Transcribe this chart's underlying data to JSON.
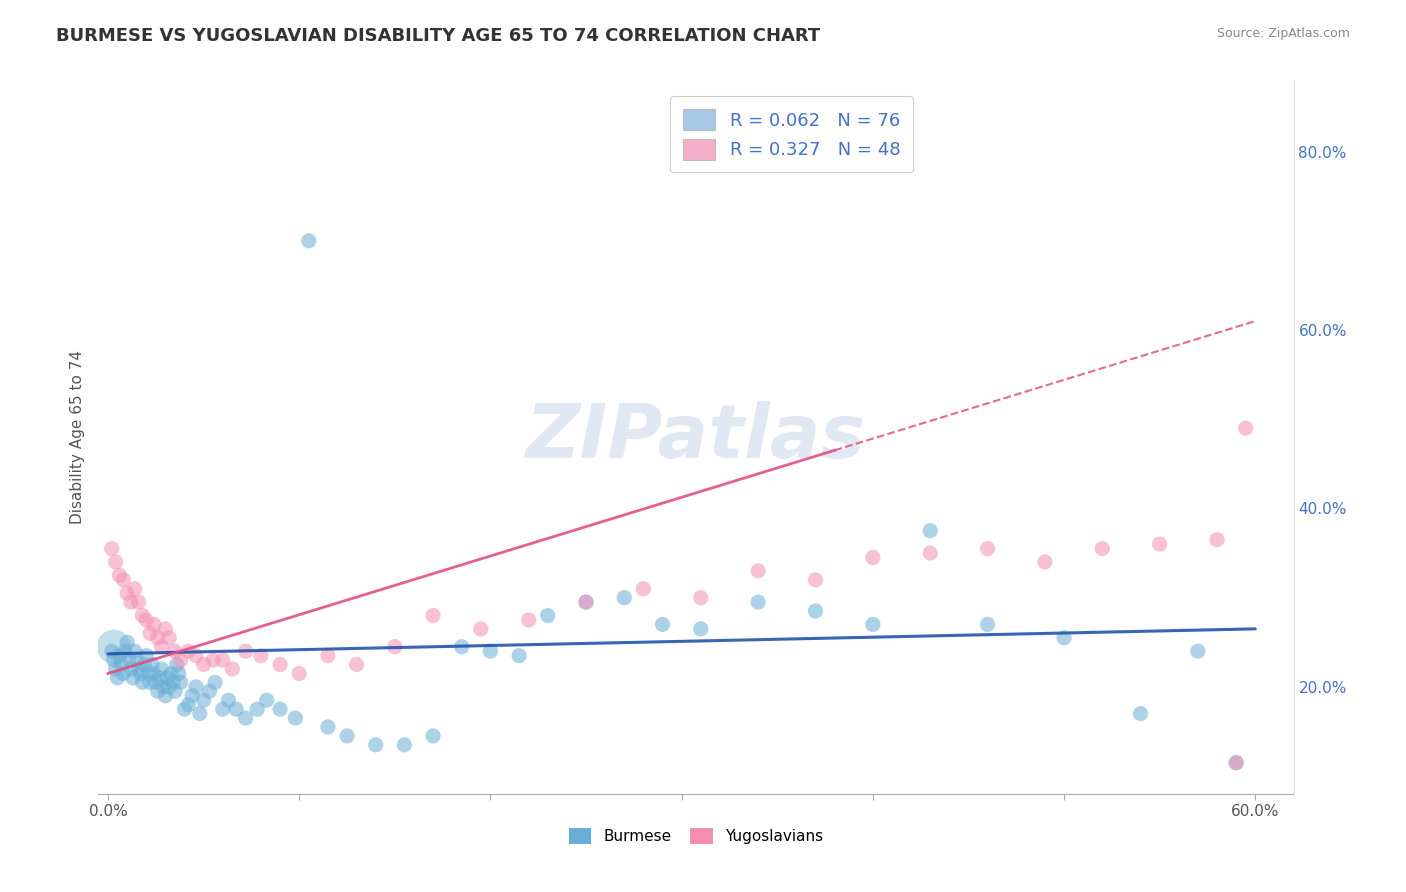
{
  "title": "BURMESE VS YUGOSLAVIAN DISABILITY AGE 65 TO 74 CORRELATION CHART",
  "source_text": "Source: ZipAtlas.com",
  "ylabel": "Disability Age 65 to 74",
  "xlim": [
    -0.005,
    0.62
  ],
  "ylim": [
    0.08,
    0.88
  ],
  "xtick_positions": [
    0.0,
    0.1,
    0.2,
    0.3,
    0.4,
    0.5,
    0.6
  ],
  "xtick_labels": [
    "0.0%",
    "",
    "",
    "",
    "",
    "",
    "60.0%"
  ],
  "ytick_positions": [
    0.2,
    0.4,
    0.6,
    0.8
  ],
  "ytick_labels": [
    "20.0%",
    "40.0%",
    "60.0%",
    "80.0%"
  ],
  "legend_label1": "R = 0.062   N = 76",
  "legend_label2": "R = 0.327   N = 48",
  "legend_color1": "#aac8e8",
  "legend_color2": "#f4b0c8",
  "burmese_color": "#6aaed6",
  "yugo_color": "#f48fb1",
  "burmese_line_color": "#2255aa",
  "yugo_line_color": "#e05080",
  "watermark": "ZIPatlas",
  "title_fontsize": 13,
  "burmese_x": [
    0.002,
    0.003,
    0.004,
    0.005,
    0.006,
    0.007,
    0.008,
    0.009,
    0.01,
    0.011,
    0.012,
    0.013,
    0.014,
    0.015,
    0.016,
    0.017,
    0.018,
    0.019,
    0.02,
    0.021,
    0.022,
    0.023,
    0.024,
    0.025,
    0.026,
    0.027,
    0.028,
    0.029,
    0.03,
    0.031,
    0.032,
    0.033,
    0.034,
    0.035,
    0.036,
    0.037,
    0.038,
    0.04,
    0.042,
    0.044,
    0.046,
    0.048,
    0.05,
    0.053,
    0.056,
    0.06,
    0.063,
    0.067,
    0.072,
    0.078,
    0.083,
    0.09,
    0.098,
    0.105,
    0.115,
    0.125,
    0.14,
    0.155,
    0.17,
    0.185,
    0.2,
    0.215,
    0.23,
    0.25,
    0.27,
    0.29,
    0.31,
    0.34,
    0.37,
    0.4,
    0.43,
    0.46,
    0.5,
    0.54,
    0.57,
    0.59
  ],
  "burmese_y": [
    0.24,
    0.23,
    0.22,
    0.21,
    0.235,
    0.225,
    0.215,
    0.24,
    0.25,
    0.23,
    0.22,
    0.21,
    0.24,
    0.23,
    0.22,
    0.215,
    0.205,
    0.225,
    0.235,
    0.215,
    0.205,
    0.225,
    0.215,
    0.205,
    0.195,
    0.21,
    0.22,
    0.2,
    0.19,
    0.21,
    0.2,
    0.215,
    0.205,
    0.195,
    0.225,
    0.215,
    0.205,
    0.175,
    0.18,
    0.19,
    0.2,
    0.17,
    0.185,
    0.195,
    0.205,
    0.175,
    0.185,
    0.175,
    0.165,
    0.175,
    0.185,
    0.175,
    0.165,
    0.7,
    0.155,
    0.145,
    0.135,
    0.135,
    0.145,
    0.245,
    0.24,
    0.235,
    0.28,
    0.295,
    0.3,
    0.27,
    0.265,
    0.295,
    0.285,
    0.27,
    0.375,
    0.27,
    0.255,
    0.17,
    0.24,
    0.115
  ],
  "yugo_x": [
    0.002,
    0.004,
    0.006,
    0.008,
    0.01,
    0.012,
    0.014,
    0.016,
    0.018,
    0.02,
    0.022,
    0.024,
    0.026,
    0.028,
    0.03,
    0.032,
    0.035,
    0.038,
    0.042,
    0.046,
    0.05,
    0.055,
    0.06,
    0.065,
    0.072,
    0.08,
    0.09,
    0.1,
    0.115,
    0.13,
    0.15,
    0.17,
    0.195,
    0.22,
    0.25,
    0.28,
    0.31,
    0.34,
    0.37,
    0.4,
    0.43,
    0.46,
    0.49,
    0.52,
    0.55,
    0.58,
    0.59,
    0.595
  ],
  "yugo_y": [
    0.355,
    0.34,
    0.325,
    0.32,
    0.305,
    0.295,
    0.31,
    0.295,
    0.28,
    0.275,
    0.26,
    0.27,
    0.255,
    0.245,
    0.265,
    0.255,
    0.24,
    0.23,
    0.24,
    0.235,
    0.225,
    0.23,
    0.23,
    0.22,
    0.24,
    0.235,
    0.225,
    0.215,
    0.235,
    0.225,
    0.245,
    0.28,
    0.265,
    0.275,
    0.295,
    0.31,
    0.3,
    0.33,
    0.32,
    0.345,
    0.35,
    0.355,
    0.34,
    0.355,
    0.36,
    0.365,
    0.115,
    0.49
  ],
  "burmese_trendline": [
    0.0,
    0.6,
    0.237,
    0.265
  ],
  "yugo_trendline": [
    0.0,
    0.6,
    0.215,
    0.61
  ],
  "yugo_trendline_solid_end": 0.38
}
